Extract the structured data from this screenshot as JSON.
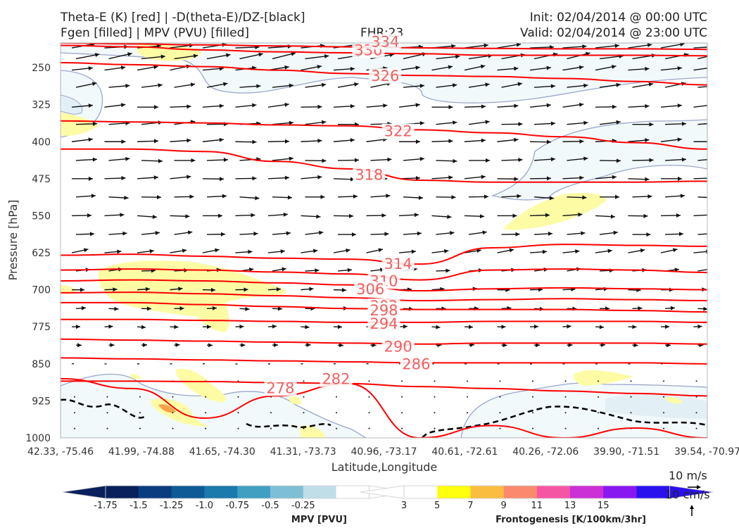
{
  "header": {
    "title_line1": "Theta-E (K) [red] | -D(theta-E)/DZ-[black]",
    "title_line2": "Fgen [filled] | MPV (PVU) [filled]",
    "fhr": "FHR:23",
    "init": "Init: 02/04/2014 @ 00:00 UTC",
    "valid": "Valid: 02/04/2014 @ 23:00 UTC"
  },
  "chart_data": {
    "type": "cross-section",
    "ylabel": "Pressure [hPa]",
    "xlabel": "Latitude,Longitude",
    "y_scale": "linear, inverted",
    "ylim": [
      1000,
      200
    ],
    "y_ticks": [
      250,
      325,
      400,
      475,
      550,
      625,
      700,
      775,
      850,
      925,
      1000
    ],
    "x_ticks": [
      "42.33, -75.46",
      "41.99, -74.88",
      "41.65, -74.30",
      "41.31, -73.73",
      "40.96, -73.17",
      "40.61, -72.61",
      "40.26, -72.06",
      "39.90, -71.51",
      "39.54, -70.97"
    ],
    "theta_e_contours": [
      {
        "label": "330",
        "pressure": [
          205,
          208,
          214,
          218,
          220,
          222,
          225,
          225,
          225,
          226
        ]
      },
      {
        "label": "334",
        "pressure": [
          200,
          202,
          204,
          206,
          208,
          210,
          211,
          212,
          212,
          213
        ]
      },
      {
        "label": "326",
        "pressure": [
          240,
          244,
          248,
          255,
          262,
          266,
          268,
          272,
          278,
          285
        ]
      },
      {
        "label": "322",
        "pressure": [
          358,
          360,
          362,
          366,
          368,
          376,
          382,
          390,
          402,
          415
        ]
      },
      {
        "label": "318",
        "pressure": [
          415,
          415,
          420,
          440,
          455,
          478,
          482,
          482,
          482,
          480
        ]
      },
      {
        "label": "314",
        "pressure": [
          630,
          628,
          632,
          636,
          638,
          648,
          615,
          608,
          610,
          612
        ]
      },
      {
        "label": "310",
        "pressure": [
          660,
          658,
          660,
          664,
          668,
          680,
          660,
          658,
          660,
          665
        ]
      },
      {
        "label": "306",
        "pressure": [
          682,
          680,
          682,
          686,
          690,
          702,
          698,
          696,
          698,
          700
        ]
      },
      {
        "label": "302",
        "pressure": [
          706,
          705,
          708,
          712,
          716,
          722,
          720,
          718,
          720,
          722
        ]
      },
      {
        "label": "298",
        "pressure": [
          726,
          726,
          730,
          734,
          738,
          740,
          740,
          740,
          742,
          745
        ]
      },
      {
        "label": "294",
        "pressure": [
          760,
          760,
          762,
          764,
          766,
          766,
          764,
          764,
          764,
          766
        ]
      },
      {
        "label": "290",
        "pressure": [
          800,
          802,
          804,
          806,
          808,
          810,
          808,
          808,
          808,
          810
        ]
      },
      {
        "label": "286",
        "pressure": [
          838,
          840,
          842,
          844,
          846,
          848,
          848,
          848,
          848,
          850
        ]
      },
      {
        "label": "282",
        "pressure": [
          885,
          885,
          886,
          888,
          890,
          896,
          900,
          905,
          910,
          915
        ]
      },
      {
        "label": "278",
        "pressure": [
          880,
          900,
          960,
          915,
          890,
          1000,
          975,
          1000,
          980,
          1000
        ]
      }
    ],
    "colorbar_mpv": {
      "label": "MPV [PVU]",
      "ticks": [
        "-1.75",
        "-1.5",
        "-1.25",
        "-1.0",
        "-0.75",
        "-0.5",
        "-0.25"
      ],
      "colors": [
        "#08205c",
        "#0b3c80",
        "#0d5a97",
        "#1a7aab",
        "#419fc2",
        "#7fbfd6",
        "#bfdee8",
        "#ffffff"
      ]
    },
    "colorbar_fgen": {
      "label": "Frontogenesis [K/100km/3hr]",
      "ticks": [
        "3",
        "5",
        "7",
        "9",
        "11",
        "13",
        "15"
      ],
      "colors": [
        "#ffffff",
        "#ffff10",
        "#fbbd40",
        "#f98a6e",
        "#f556a3",
        "#cb2fd6",
        "#8818f0",
        "#2a12ef"
      ]
    },
    "reference_vectors": {
      "horizontal": "10 m/s",
      "vertical": "10 cm/s"
    },
    "colors": {
      "theta_e": "#ff0000",
      "theta_e_label": "#f06060",
      "mpv_fill": "#f2f9fb",
      "mpv_edge": "#9aa7cc",
      "fgen_fill": "#fdfca5",
      "fgen_strong": "#f7a24a",
      "dthetae_dz": "#000000"
    }
  }
}
